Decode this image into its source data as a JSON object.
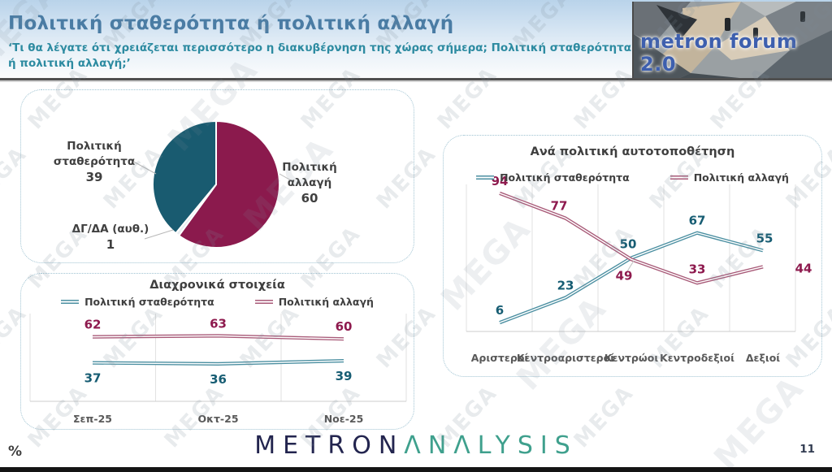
{
  "header": {
    "title": "Πολιτική σταθερότητα ή πολιτική αλλαγή",
    "subtitle": "‘Τι θα λέγατε ότι χρειάζεται περισσότερο η διακυβέρνηση της χώρας σήμερα; Πολιτική σταθερότητα ή πολιτική αλλαγή;’",
    "forum_logo_text": "metron forum 2.0"
  },
  "watermark": {
    "text": "MEGA"
  },
  "colors": {
    "stability_fill": "#195b70",
    "change_fill": "#8b1a4d",
    "stability_line": "#4b8fa1",
    "change_line": "#a85a78",
    "stability_label": "#175d73",
    "change_label": "#8e1a4e"
  },
  "chart_data": [
    {
      "type": "pie",
      "segments": [
        {
          "label": "Πολιτική σταθερότητα",
          "value": 39,
          "color": "#195b70"
        },
        {
          "label": "Πολιτική αλλαγή",
          "value": 60,
          "color": "#8b1a4d"
        },
        {
          "label": "ΔΓ/ΔΑ (αυθ.)",
          "value": 1,
          "color": "#e9edf0"
        }
      ]
    },
    {
      "type": "line",
      "title": "Διαχρονικά στοιχεία",
      "categories": [
        "Σεπ-25",
        "Οκτ-25",
        "Νοε-25"
      ],
      "series": [
        {
          "name": "Πολιτική σταθερότητα",
          "values": [
            37,
            36,
            39
          ],
          "color": "#4b8fa1",
          "label_color": "#175d73"
        },
        {
          "name": "Πολιτική αλλαγή",
          "values": [
            62,
            63,
            60
          ],
          "color": "#a85a78",
          "label_color": "#8e1a4e"
        }
      ],
      "ylim": [
        0,
        100
      ],
      "grid": "vertical",
      "legend_position": "top"
    },
    {
      "type": "line",
      "title": "Ανά πολιτική αυτοτοποθέτηση",
      "categories": [
        "Αριστεροί",
        "Κεντροαριστεροί",
        "Κεντρώοι",
        "Κεντροδεξιοί",
        "Δεξιοί"
      ],
      "series": [
        {
          "name": "Πολιτική σταθερότητα",
          "values": [
            6,
            23,
            50,
            67,
            55
          ],
          "color": "#4b8fa1",
          "label_color": "#175d73"
        },
        {
          "name": "Πολιτική αλλαγή",
          "values": [
            94,
            77,
            49,
            33,
            44
          ],
          "color": "#a85a78",
          "label_color": "#8e1a4e"
        }
      ],
      "ylim": [
        0,
        100
      ],
      "grid": "vertical",
      "legend_position": "top"
    }
  ],
  "footer": {
    "percent": "%",
    "logo_part1": "METRON",
    "logo_part2": "ΛNΛLYSIS",
    "page": "11"
  }
}
